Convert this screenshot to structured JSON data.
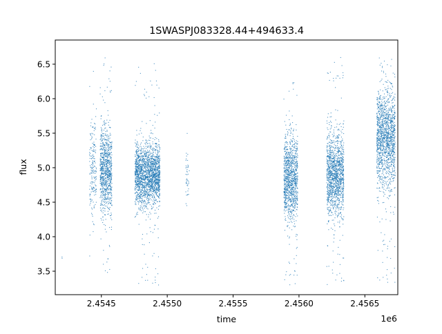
{
  "chart_data": {
    "type": "scatter",
    "title": "1SWASPJ083328.44+494633.4",
    "xlabel": "time",
    "ylabel": "flux",
    "x_offset_label": "1e6",
    "xlim": [
      2454150,
      2456750
    ],
    "ylim": [
      3.16,
      6.85
    ],
    "xticks": [
      2454500,
      2455000,
      2455500,
      2456000,
      2456500
    ],
    "xtick_labels": [
      "2.4545",
      "2.4550",
      "2.4555",
      "2.4560",
      "2.4565"
    ],
    "yticks": [
      3.5,
      4.0,
      4.5,
      5.0,
      5.5,
      6.0,
      6.5
    ],
    "ytick_labels": [
      "3.5",
      "4.0",
      "4.5",
      "5.0",
      "5.5",
      "6.0",
      "6.5"
    ],
    "grid": false,
    "legend": "none",
    "marker_color": "#1f77b4",
    "observing_seasons": [
      {
        "x_start": 2454198,
        "x_end": 2454204,
        "y_center": 4.0,
        "y_spread": 0.3,
        "y_min": 3.5,
        "y_max": 4.45,
        "density": 0.05
      },
      {
        "x_start": 2454410,
        "x_end": 2454462,
        "y_center": 4.95,
        "y_spread": 0.35,
        "y_min": 3.55,
        "y_max": 6.55,
        "density": 0.35
      },
      {
        "x_start": 2454490,
        "x_end": 2454580,
        "y_center": 4.95,
        "y_spread": 0.3,
        "y_min": 3.4,
        "y_max": 6.65,
        "density": 1.0
      },
      {
        "x_start": 2454755,
        "x_end": 2454945,
        "y_center": 4.9,
        "y_spread": 0.22,
        "y_min": 3.3,
        "y_max": 6.55,
        "density": 1.0
      },
      {
        "x_start": 2455140,
        "x_end": 2455168,
        "y_center": 4.85,
        "y_spread": 0.22,
        "y_min": 4.45,
        "y_max": 5.55,
        "density": 0.15
      },
      {
        "x_start": 2455885,
        "x_end": 2455990,
        "y_center": 4.85,
        "y_spread": 0.3,
        "y_min": 3.3,
        "y_max": 6.25,
        "density": 1.0
      },
      {
        "x_start": 2456210,
        "x_end": 2456340,
        "y_center": 4.9,
        "y_spread": 0.3,
        "y_min": 3.3,
        "y_max": 6.65,
        "density": 1.0
      },
      {
        "x_start": 2456590,
        "x_end": 2456730,
        "y_center": 5.45,
        "y_spread": 0.35,
        "y_min": 3.3,
        "y_max": 6.65,
        "density": 1.0
      }
    ]
  }
}
